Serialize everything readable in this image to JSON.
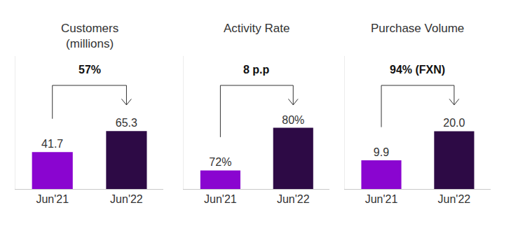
{
  "chart_data": [
    {
      "type": "bar",
      "title": "Customers (millions)",
      "categories": [
        "Jun'21",
        "Jun'22"
      ],
      "values": [
        41.7,
        65.3
      ],
      "colors": [
        "#8a05d0",
        "#2d0a45"
      ],
      "annotation": "57%",
      "ylim": [
        0,
        150
      ],
      "data_labels": true,
      "tick_labels": "x",
      "grid": false
    },
    {
      "type": "bar",
      "title": "Activity Rate",
      "categories": [
        "Jun'21",
        "Jun'22"
      ],
      "values": [
        72,
        80
      ],
      "value_labels": [
        "72%",
        "80%"
      ],
      "colors": [
        "#8a05d0",
        "#2d0a45"
      ],
      "annotation": "8 p.p",
      "ylim": [
        68.5,
        93.5
      ],
      "data_labels": true,
      "tick_labels": "x",
      "grid": false
    },
    {
      "type": "bar",
      "title": "Purchase Volume",
      "categories": [
        "Jun'21",
        "Jun'22"
      ],
      "values": [
        9.9,
        20.0
      ],
      "value_labels": [
        "9.9",
        "20.0"
      ],
      "colors": [
        "#8a05d0",
        "#2d0a45"
      ],
      "annotation": "94% (FXN)",
      "ylim": [
        0,
        46
      ],
      "data_labels": true,
      "tick_labels": "x",
      "grid": false
    }
  ]
}
